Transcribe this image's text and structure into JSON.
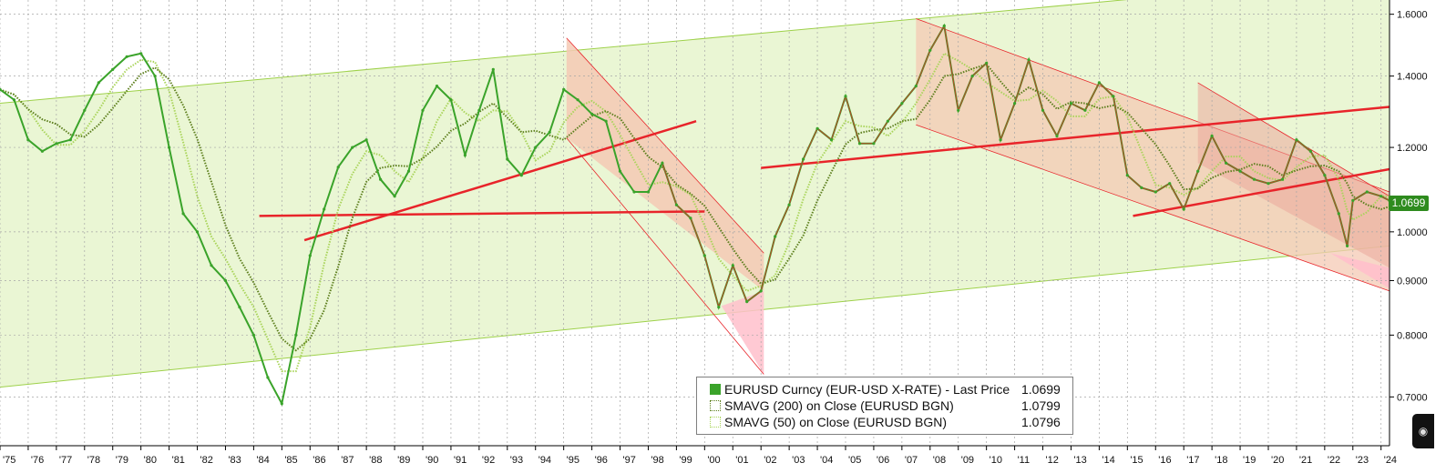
{
  "chart_data": {
    "type": "line",
    "title": "",
    "xlabel": "",
    "ylabel": "",
    "x_range": [
      1975.0,
      2024.3
    ],
    "ylim": [
      0.63,
      1.65
    ],
    "y_scale": "log",
    "y_ticks": [
      "0.7000",
      "0.8000",
      "0.9000",
      "1.0000",
      "1.2000",
      "1.4000",
      "1.6000"
    ],
    "x_tick_labels": [
      "'75",
      "'76",
      "'77",
      "'78",
      "'79",
      "'80",
      "'81",
      "'82",
      "'83",
      "'84",
      "'85",
      "'86",
      "'87",
      "'88",
      "'89",
      "'90",
      "'91",
      "'92",
      "'93",
      "'94",
      "'95",
      "'96",
      "'97",
      "'98",
      "'99",
      "'00",
      "'01",
      "'02",
      "'03",
      "'04",
      "'05",
      "'06",
      "'07",
      "'08",
      "'09",
      "'10",
      "'11",
      "'12",
      "'13",
      "'14",
      "'15",
      "'16",
      "'17",
      "'18",
      "'19",
      "'20",
      "'21",
      "'22",
      "'23",
      "'24"
    ],
    "grid": true,
    "legend_position": "bottom-center",
    "last_price_label": "1.0699",
    "series": [
      {
        "name": "EURUSD Curncy (EUR-USD X-RATE) - Last Price",
        "last": "1.0699",
        "color": "#3aa32a",
        "points": [
          [
            1975.0,
            1.36
          ],
          [
            1975.5,
            1.33
          ],
          [
            1976.0,
            1.22
          ],
          [
            1976.5,
            1.19
          ],
          [
            1977.0,
            1.21
          ],
          [
            1977.5,
            1.22
          ],
          [
            1978.0,
            1.3
          ],
          [
            1978.5,
            1.38
          ],
          [
            1979.0,
            1.42
          ],
          [
            1979.5,
            1.46
          ],
          [
            1980.0,
            1.47
          ],
          [
            1980.5,
            1.4
          ],
          [
            1981.0,
            1.2
          ],
          [
            1981.5,
            1.04
          ],
          [
            1982.0,
            1.0
          ],
          [
            1982.5,
            0.93
          ],
          [
            1983.0,
            0.9
          ],
          [
            1983.5,
            0.85
          ],
          [
            1984.0,
            0.8
          ],
          [
            1984.5,
            0.73
          ],
          [
            1985.0,
            0.69
          ],
          [
            1985.5,
            0.8
          ],
          [
            1986.0,
            0.95
          ],
          [
            1986.5,
            1.05
          ],
          [
            1987.0,
            1.15
          ],
          [
            1987.5,
            1.2
          ],
          [
            1988.0,
            1.22
          ],
          [
            1988.5,
            1.12
          ],
          [
            1989.0,
            1.08
          ],
          [
            1989.5,
            1.14
          ],
          [
            1990.0,
            1.3
          ],
          [
            1990.5,
            1.37
          ],
          [
            1991.0,
            1.33
          ],
          [
            1991.5,
            1.18
          ],
          [
            1992.0,
            1.3
          ],
          [
            1992.5,
            1.42
          ],
          [
            1993.0,
            1.17
          ],
          [
            1993.5,
            1.13
          ],
          [
            1994.0,
            1.2
          ],
          [
            1994.5,
            1.24
          ],
          [
            1995.0,
            1.36
          ],
          [
            1995.5,
            1.33
          ],
          [
            1996.0,
            1.29
          ],
          [
            1996.5,
            1.27
          ],
          [
            1997.0,
            1.14
          ],
          [
            1997.5,
            1.09
          ],
          [
            1998.0,
            1.09
          ],
          [
            1998.5,
            1.16
          ],
          [
            1999.0,
            1.06
          ],
          [
            1999.5,
            1.03
          ],
          [
            2000.0,
            0.95
          ],
          [
            2000.5,
            0.85
          ],
          [
            2001.0,
            0.93
          ],
          [
            2001.5,
            0.86
          ],
          [
            2002.0,
            0.88
          ],
          [
            2002.5,
            0.99
          ],
          [
            2003.0,
            1.06
          ],
          [
            2003.5,
            1.17
          ],
          [
            2004.0,
            1.25
          ],
          [
            2004.5,
            1.22
          ],
          [
            2005.0,
            1.34
          ],
          [
            2005.5,
            1.21
          ],
          [
            2006.0,
            1.21
          ],
          [
            2006.5,
            1.27
          ],
          [
            2007.0,
            1.32
          ],
          [
            2007.5,
            1.37
          ],
          [
            2008.0,
            1.48
          ],
          [
            2008.5,
            1.56
          ],
          [
            2009.0,
            1.3
          ],
          [
            2009.5,
            1.4
          ],
          [
            2010.0,
            1.44
          ],
          [
            2010.5,
            1.22
          ],
          [
            2011.0,
            1.32
          ],
          [
            2011.5,
            1.45
          ],
          [
            2012.0,
            1.3
          ],
          [
            2012.5,
            1.23
          ],
          [
            2013.0,
            1.32
          ],
          [
            2013.5,
            1.3
          ],
          [
            2014.0,
            1.38
          ],
          [
            2014.5,
            1.34
          ],
          [
            2015.0,
            1.13
          ],
          [
            2015.5,
            1.1
          ],
          [
            2016.0,
            1.09
          ],
          [
            2016.5,
            1.11
          ],
          [
            2017.0,
            1.05
          ],
          [
            2017.5,
            1.14
          ],
          [
            2018.0,
            1.23
          ],
          [
            2018.5,
            1.16
          ],
          [
            2019.0,
            1.14
          ],
          [
            2019.5,
            1.12
          ],
          [
            2020.0,
            1.11
          ],
          [
            2020.5,
            1.12
          ],
          [
            2021.0,
            1.22
          ],
          [
            2021.5,
            1.19
          ],
          [
            2022.0,
            1.13
          ],
          [
            2022.5,
            1.04
          ],
          [
            2022.8,
            0.97
          ],
          [
            2023.0,
            1.07
          ],
          [
            2023.5,
            1.09
          ],
          [
            2024.0,
            1.08
          ],
          [
            2024.3,
            1.0699
          ]
        ]
      },
      {
        "name": "SMAVG (200)  on Close (EURUSD BGN)",
        "last": "1.0799",
        "color": "#5d7f1d"
      },
      {
        "name": "SMAVG (50)  on Close (EURUSD BGN)",
        "last": "1.0796",
        "color": "#a9d45a"
      }
    ]
  },
  "legend": {
    "rows": [
      {
        "label": "EURUSD Curncy (EUR-USD X-RATE) - Last Price",
        "value": "1.0699"
      },
      {
        "label": "SMAVG (200)  on Close (EURUSD BGN)",
        "value": "1.0799"
      },
      {
        "label": "SMAVG (50)  on Close (EURUSD BGN)",
        "value": "1.0796"
      }
    ]
  },
  "colors": {
    "channel_green": "#eaf6d4",
    "channel_green_line": "#9ed14a",
    "channel_red": "#f4c9b4",
    "channel_pink": "#ffc0cb",
    "trendline_red": "#e8242a",
    "price_green": "#3aa32a",
    "price_red": "#e8242a",
    "last_badge": "#2e8b1e"
  }
}
